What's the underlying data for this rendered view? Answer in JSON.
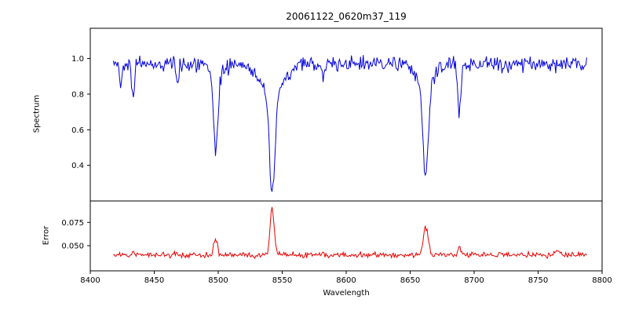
{
  "chart_data": {
    "type": "line",
    "title": "20061122_0620m37_119",
    "xlabel": "Wavelength",
    "xlim": [
      8400,
      8800
    ],
    "x_ticks": [
      8400,
      8450,
      8500,
      8550,
      8600,
      8650,
      8700,
      8750,
      8800
    ],
    "x_data_range": [
      8418,
      8788
    ],
    "n_points": 520,
    "seed": 42,
    "grid": false,
    "legend": "none",
    "subplots": [
      {
        "name": "spectrum",
        "ylabel": "Spectrum",
        "ylim": [
          0.2,
          1.17
        ],
        "y_ticks": [
          0.4,
          0.6,
          0.8,
          1.0
        ],
        "y_tick_labels": [
          "0.4",
          "0.6",
          "0.8",
          "1.0"
        ],
        "color": "#0000dd",
        "continuum": 0.97,
        "noise_sigma": 0.021,
        "absorption_lines": [
          {
            "center": 8424.0,
            "core_depth": 0.1,
            "core_sigma": 0.9,
            "wing_depth": 0.0,
            "wing_sigma": 1.0
          },
          {
            "center": 8433.5,
            "core_depth": 0.2,
            "core_sigma": 1.0,
            "wing_depth": 0.0,
            "wing_sigma": 1.0
          },
          {
            "center": 8468.0,
            "core_depth": 0.12,
            "core_sigma": 1.0,
            "wing_depth": 0.0,
            "wing_sigma": 1.0
          },
          {
            "center": 8498.0,
            "core_depth": 0.42,
            "core_sigma": 1.6,
            "wing_depth": 0.08,
            "wing_sigma": 5.0
          },
          {
            "center": 8542.1,
            "core_depth": 0.56,
            "core_sigma": 2.2,
            "wing_depth": 0.17,
            "wing_sigma": 9.0
          },
          {
            "center": 8582.0,
            "core_depth": 0.1,
            "core_sigma": 0.9,
            "wing_depth": 0.0,
            "wing_sigma": 1.0
          },
          {
            "center": 8662.1,
            "core_depth": 0.5,
            "core_sigma": 2.0,
            "wing_depth": 0.13,
            "wing_sigma": 7.0
          },
          {
            "center": 8688.5,
            "core_depth": 0.27,
            "core_sigma": 1.2,
            "wing_depth": 0.0,
            "wing_sigma": 1.0
          }
        ]
      },
      {
        "name": "error",
        "ylabel": "Error",
        "ylim": [
          0.023,
          0.098
        ],
        "y_ticks": [
          0.05,
          0.075
        ],
        "y_tick_labels": [
          "0.050",
          "0.075"
        ],
        "color": "#e80000",
        "baseline": 0.04,
        "noise_sigma": 0.0015,
        "peaks": [
          {
            "center": 8433.5,
            "amp": 0.004,
            "sigma": 1.0
          },
          {
            "center": 8468.0,
            "amp": 0.003,
            "sigma": 1.0
          },
          {
            "center": 8498.0,
            "amp": 0.016,
            "sigma": 1.5
          },
          {
            "center": 8542.1,
            "amp": 0.05,
            "sigma": 1.6
          },
          {
            "center": 8582.0,
            "amp": 0.003,
            "sigma": 1.0
          },
          {
            "center": 8662.1,
            "amp": 0.03,
            "sigma": 1.9
          },
          {
            "center": 8688.5,
            "amp": 0.009,
            "sigma": 1.2
          },
          {
            "center": 8765.0,
            "amp": 0.004,
            "sigma": 2.5
          }
        ]
      }
    ]
  }
}
